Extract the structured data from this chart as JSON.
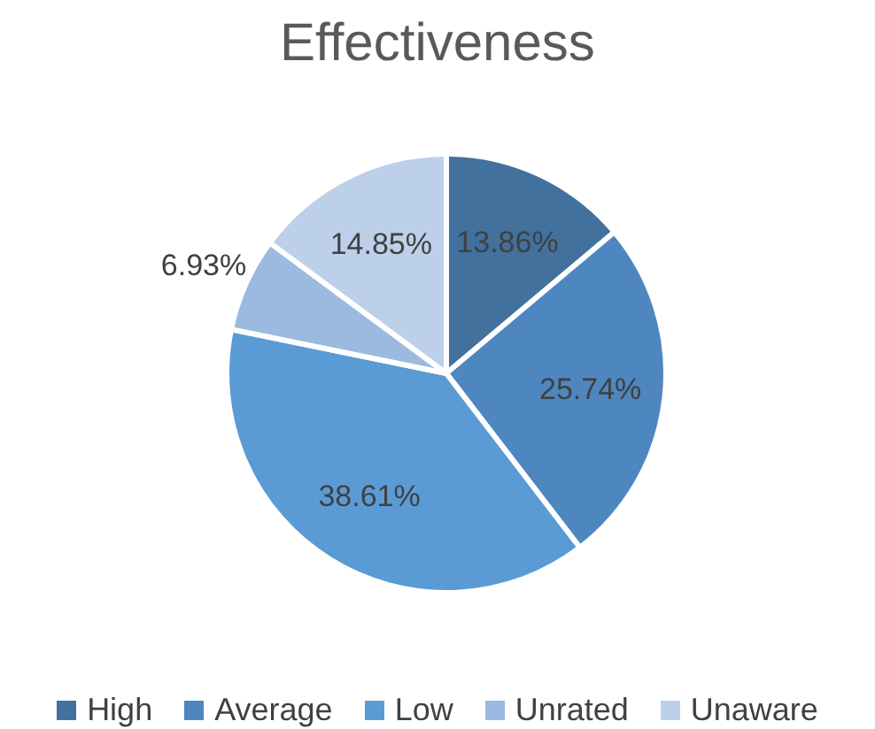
{
  "chart_data": {
    "type": "pie",
    "title": "Effectiveness",
    "categories": [
      "High",
      "Average",
      "Low",
      "Unrated",
      "Unaware"
    ],
    "values": [
      13.86,
      25.74,
      38.61,
      6.93,
      14.85
    ],
    "value_labels": [
      "13.86%",
      "25.74%",
      "38.61%",
      "6.93%",
      "14.85%"
    ],
    "colors": [
      "#41719c",
      "#4e86c0",
      "#5b9bd5",
      "#9cb9df",
      "#bdd0ea"
    ],
    "legend": "bottom"
  }
}
